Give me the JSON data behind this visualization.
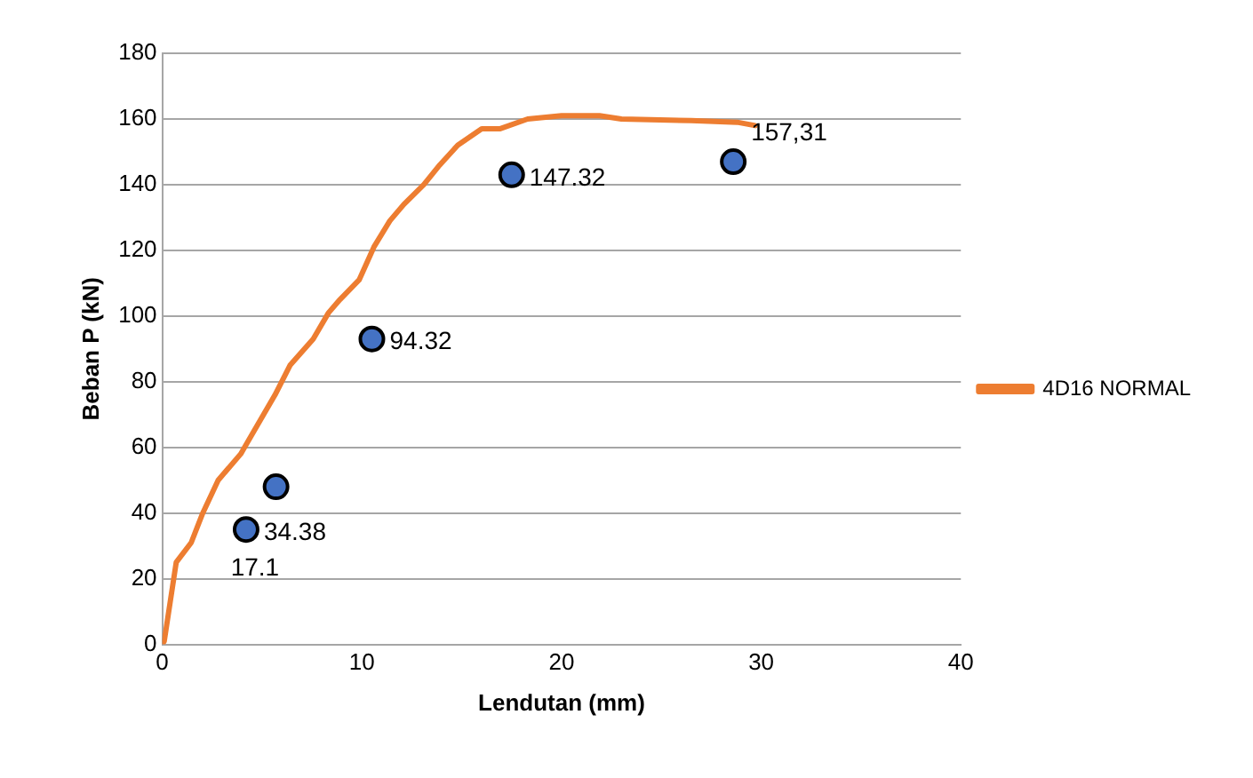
{
  "chart_data": {
    "type": "line",
    "xlabel": "Lendutan (mm)",
    "ylabel": "Beban P (kN)",
    "xlim": [
      0,
      40
    ],
    "xticks": [
      0,
      10,
      20,
      30,
      40
    ],
    "ylim": [
      0,
      180
    ],
    "yticks": [
      0,
      20,
      40,
      60,
      80,
      100,
      120,
      140,
      160,
      180
    ],
    "grid": "y",
    "legend": "right",
    "marker": "none",
    "line_style": "solid",
    "series": [
      {
        "name": "4D16 NORMAL",
        "color": "#ed7d31",
        "x": [
          0,
          0.1,
          0.7,
          1.45,
          2.03,
          2.8,
          3.93,
          4.5,
          5.65,
          6.4,
          7.56,
          8.33,
          8.9,
          9.86,
          10.6,
          11.4,
          12.1,
          13.1,
          13.9,
          14.8,
          16,
          16.9,
          18.3,
          20,
          21.9,
          23,
          26.5,
          28.8,
          29.7
        ],
        "values": [
          0,
          1,
          25,
          31,
          40,
          50,
          58,
          64,
          76,
          85,
          93,
          101,
          105,
          111,
          121,
          129,
          134,
          140,
          146,
          152,
          157,
          157,
          160,
          161,
          161,
          160,
          159.5,
          159,
          158
        ]
      },
      {
        "type": "scatter",
        "marker": "circle",
        "color": "#4472c4",
        "x": [
          4.2,
          5.7,
          10.5,
          17.5,
          28.6
        ],
        "values": [
          35,
          48,
          93,
          143,
          147
        ]
      }
    ],
    "annotations": [
      {
        "text": "34.38",
        "x": 4.2,
        "y": 35
      },
      {
        "text": "17.1",
        "x": 4.2,
        "y": 35
      },
      {
        "text": "94.32",
        "x": 10.5,
        "y": 93
      },
      {
        "text": "147.32",
        "x": 17.5,
        "y": 143
      },
      {
        "text": "157,31",
        "x": 28.6,
        "y": 147
      }
    ]
  }
}
